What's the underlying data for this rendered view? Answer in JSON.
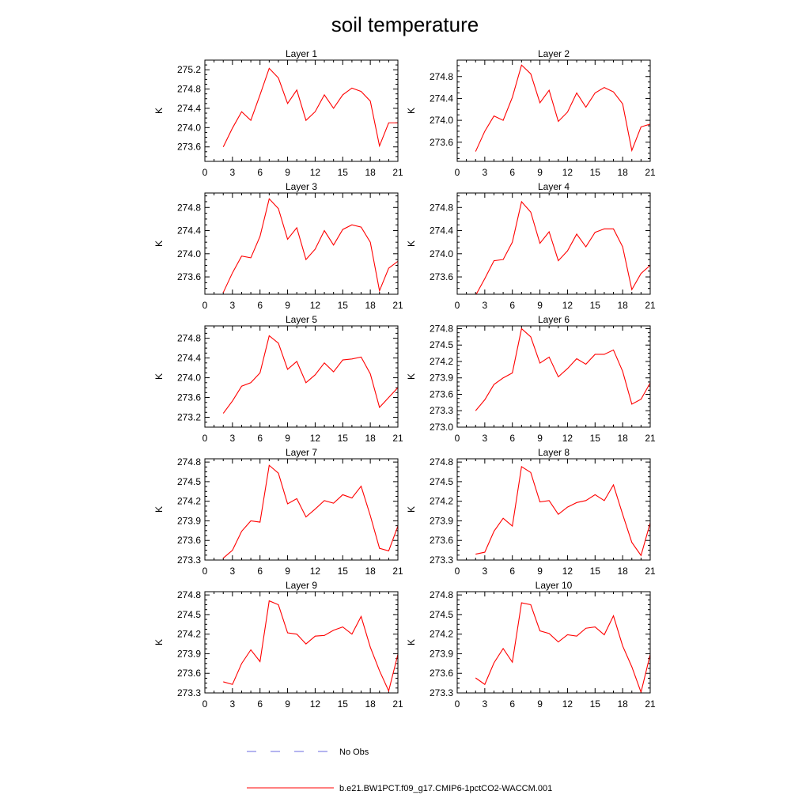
{
  "title": "soil temperature",
  "chart_data": {
    "type": "line",
    "title": "soil temperature",
    "xlabel": "",
    "ylabel": "K",
    "xlim": [
      0,
      21
    ],
    "x_ticks": [
      0,
      3,
      6,
      9,
      12,
      15,
      18,
      21
    ],
    "x": [
      2,
      3,
      4,
      5,
      6,
      7,
      8,
      9,
      10,
      11,
      12,
      13,
      14,
      15,
      16,
      17,
      18,
      19,
      20,
      21
    ],
    "series_styles": {
      "model": {
        "color": "#ff0000",
        "dash": "none"
      },
      "obs": {
        "color": "#6a6ae0",
        "dash": "12,18"
      }
    },
    "legend": [
      {
        "label": "No Obs",
        "style": "obs"
      },
      {
        "label": "b.e21.BW1PCT.f09_g17.CMIP6-1pctCO2-WACCM.001",
        "style": "model"
      }
    ],
    "legend_position": "bottom-center",
    "panels": [
      {
        "title": "Layer 1",
        "ylim": [
          273.3,
          275.4
        ],
        "y_ticks": [
          "273.6",
          "274.0",
          "274.4",
          "274.8",
          "275.2"
        ],
        "values": [
          273.6,
          273.99,
          274.33,
          274.15,
          274.68,
          275.23,
          275.03,
          274.5,
          274.78,
          274.15,
          274.33,
          274.68,
          274.4,
          274.68,
          274.82,
          274.75,
          274.55,
          273.62,
          274.1,
          274.1
        ]
      },
      {
        "title": "Layer 2",
        "ylim": [
          273.25,
          275.1
        ],
        "y_ticks": [
          "273.6",
          "274.0",
          "274.4",
          "274.8"
        ],
        "values": [
          273.43,
          273.8,
          274.08,
          274.0,
          274.42,
          275.01,
          274.85,
          274.32,
          274.55,
          273.98,
          274.15,
          274.5,
          274.24,
          274.5,
          274.6,
          274.52,
          274.3,
          273.45,
          273.88,
          273.93
        ]
      },
      {
        "title": "Layer 3",
        "ylim": [
          273.3,
          275.05
        ],
        "y_ticks": [
          "273.6",
          "274.0",
          "274.4",
          "274.8"
        ],
        "values": [
          273.33,
          273.67,
          273.96,
          273.93,
          274.3,
          274.95,
          274.78,
          274.25,
          274.45,
          273.9,
          274.08,
          274.4,
          274.15,
          274.42,
          274.5,
          274.46,
          274.2,
          273.36,
          273.75,
          273.87
        ]
      },
      {
        "title": "Layer 4",
        "ylim": [
          273.3,
          275.05
        ],
        "y_ticks": [
          "273.6",
          "274.0",
          "274.4",
          "274.8"
        ],
        "values": [
          273.28,
          273.57,
          273.88,
          273.9,
          274.2,
          274.9,
          274.72,
          274.18,
          274.38,
          273.88,
          274.05,
          274.34,
          274.12,
          274.37,
          274.43,
          274.43,
          274.12,
          273.38,
          273.66,
          273.8
        ]
      },
      {
        "title": "Layer 5",
        "ylim": [
          273.0,
          275.05
        ],
        "y_ticks": [
          "273.2",
          "273.6",
          "274.0",
          "274.4",
          "274.8"
        ],
        "values": [
          273.28,
          273.53,
          273.83,
          273.9,
          274.1,
          274.85,
          274.7,
          274.17,
          274.33,
          273.9,
          274.06,
          274.3,
          274.12,
          274.36,
          274.38,
          274.42,
          274.08,
          273.4,
          273.6,
          273.8
        ]
      },
      {
        "title": "Layer 6",
        "ylim": [
          273.0,
          274.85
        ],
        "y_ticks": [
          "273.0",
          "273.3",
          "273.6",
          "273.9",
          "274.2",
          "274.5",
          "274.8"
        ],
        "values": [
          273.3,
          273.5,
          273.78,
          273.9,
          273.99,
          274.8,
          274.65,
          274.17,
          274.28,
          273.92,
          274.07,
          274.25,
          274.15,
          274.33,
          274.33,
          274.41,
          274.02,
          273.42,
          273.51,
          273.81
        ]
      },
      {
        "title": "Layer 7",
        "ylim": [
          273.3,
          274.85
        ],
        "y_ticks": [
          "273.3",
          "273.6",
          "273.9",
          "274.2",
          "274.5",
          "274.8"
        ],
        "values": [
          273.33,
          273.45,
          273.74,
          273.9,
          273.88,
          274.75,
          274.63,
          274.16,
          274.24,
          273.96,
          274.08,
          274.21,
          274.17,
          274.3,
          274.25,
          274.43,
          273.98,
          273.48,
          273.44,
          273.82
        ]
      },
      {
        "title": "Layer 8",
        "ylim": [
          273.3,
          274.85
        ],
        "y_ticks": [
          "273.3",
          "273.6",
          "273.9",
          "274.2",
          "274.5",
          "274.8"
        ],
        "values": [
          273.39,
          273.42,
          273.74,
          273.94,
          273.82,
          274.73,
          274.64,
          274.19,
          274.21,
          274.0,
          274.11,
          274.18,
          274.21,
          274.3,
          274.21,
          274.45,
          274.0,
          273.57,
          273.37,
          273.87
        ]
      },
      {
        "title": "Layer 9",
        "ylim": [
          273.3,
          274.85
        ],
        "y_ticks": [
          "273.3",
          "273.6",
          "273.9",
          "274.2",
          "274.5",
          "274.8"
        ],
        "values": [
          273.47,
          273.43,
          273.75,
          273.96,
          273.78,
          274.71,
          274.65,
          274.22,
          274.2,
          274.05,
          274.17,
          274.18,
          274.26,
          274.31,
          274.2,
          274.47,
          274.0,
          273.64,
          273.33,
          273.89
        ]
      },
      {
        "title": "Layer 10",
        "ylim": [
          273.3,
          274.85
        ],
        "y_ticks": [
          "273.3",
          "273.6",
          "273.9",
          "274.2",
          "274.5",
          "274.8"
        ],
        "values": [
          273.53,
          273.43,
          273.76,
          273.98,
          273.77,
          274.68,
          274.65,
          274.25,
          274.21,
          274.08,
          274.19,
          274.17,
          274.29,
          274.31,
          274.19,
          274.48,
          274.02,
          273.7,
          273.31,
          273.89
        ]
      }
    ]
  }
}
